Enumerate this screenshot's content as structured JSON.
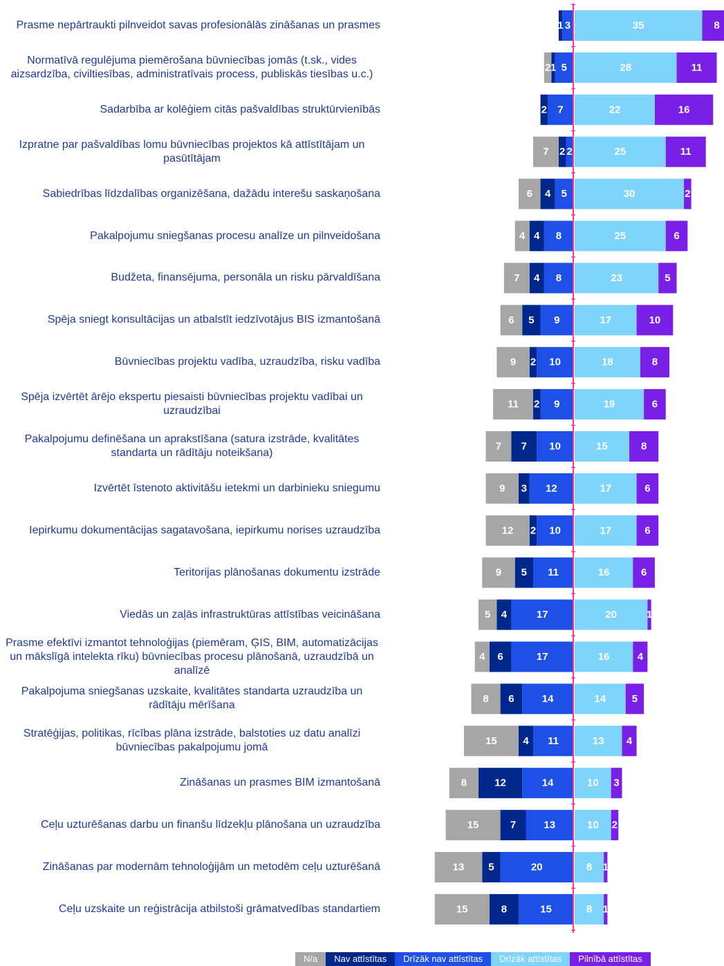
{
  "chart_data": {
    "type": "diverging-bar",
    "categories": [
      "Prasme nepārtraukti pilnveidot savas profesionālās zināšanas un prasmes",
      "Normatīvā regulējuma piemērošana būvniecības jomās (t.sk., vides aizsardzība, civiltiesības, administratīvais process, publiskās tiesības u.c.)",
      "Sadarbība ar kolēģiem citās pašvaldības struktūrvienībās",
      "Izpratne par pašvaldības lomu būvniecības projektos kā attīstītājam un pasūtītājam",
      "Sabiedrības līdzdalības organizēšana, dažādu interešu saskaņošana",
      "Pakalpojumu  sniegšanas procesu analīze un pilnveidošana",
      "Budžeta, finansējuma, personāla un risku pārvaldīšana",
      "Spēja sniegt konsultācijas un atbalstīt iedzīvotājus BIS izmantošanā",
      "Būvniecības projektu vadība, uzraudzība, risku vadība",
      "Spēja izvērtēt ārējo ekspertu piesaisti būvniecības projektu vadībai un uzraudzībai",
      "Pakalpojumu definēšana un aprakstīšana (satura izstrāde, kvalitātes standarta un rādītāju noteikšana)",
      "Izvērtēt īstenoto aktivitāšu ietekmi un darbinieku sniegumu",
      "Iepirkumu dokumentācijas sagatavošana, iepirkumu norises uzraudzība",
      "Teritorijas plānošanas dokumentu izstrāde",
      "Viedās un zaļās infrastruktūras attīstības veicināšana",
      "Prasme efektīvi izmantot tehnoloģijas (piemēram, ĢIS, BIM, automatizācijas un mākslīgā intelekta rīku) būvniecības procesu plānošanā, uzraudzībā un analīzē",
      "Pakalpojuma sniegšanas uzskaite, kvalitātes standarta uzraudzība un rādītāju mērīšana",
      "Stratēģijas, politikas, rīcības plāna izstrāde, balstoties uz datu analīzi būvniecības pakalpojumu jomā",
      "Zināšanas un prasmes BIM izmantošanā",
      "Ceļu uzturēšanas darbu un finanšu līdzekļu plānošana un uzraudzība",
      "Zināšanas par modernām tehnoloģijām un metodēm ceļu uzturēšanā",
      "Ceļu uzskaite un reģistrācija atbilstoši grāmatvedības standartiem"
    ],
    "series": [
      {
        "name": "N/a",
        "color": "#a6a6a6",
        "side": "left",
        "values": [
          0,
          2,
          0,
          7,
          6,
          4,
          7,
          6,
          9,
          11,
          7,
          9,
          12,
          9,
          5,
          4,
          8,
          15,
          8,
          15,
          13,
          15
        ]
      },
      {
        "name": "Nav attīstītas",
        "color": "#00288c",
        "side": "left",
        "values": [
          1,
          1,
          2,
          2,
          4,
          4,
          4,
          5,
          2,
          2,
          7,
          3,
          2,
          5,
          4,
          6,
          6,
          4,
          12,
          7,
          5,
          8
        ]
      },
      {
        "name": "Drīzāk nav attīstītas",
        "color": "#1e4fe6",
        "side": "left",
        "values": [
          3,
          5,
          7,
          2,
          5,
          8,
          8,
          9,
          10,
          9,
          10,
          12,
          10,
          11,
          17,
          17,
          14,
          11,
          14,
          13,
          20,
          15
        ]
      },
      {
        "name": "Drīzāk attīstītas",
        "color": "#7fd4fb",
        "side": "right",
        "values": [
          35,
          28,
          22,
          25,
          30,
          25,
          23,
          17,
          18,
          19,
          15,
          17,
          17,
          16,
          20,
          16,
          14,
          13,
          10,
          10,
          8,
          8
        ]
      },
      {
        "name": "Pilnībā attīstītas",
        "color": "#7a1fe6",
        "side": "right",
        "values": [
          8,
          11,
          16,
          11,
          2,
          6,
          5,
          10,
          8,
          6,
          8,
          6,
          6,
          6,
          1,
          4,
          5,
          4,
          3,
          2,
          1,
          1
        ]
      }
    ]
  }
}
